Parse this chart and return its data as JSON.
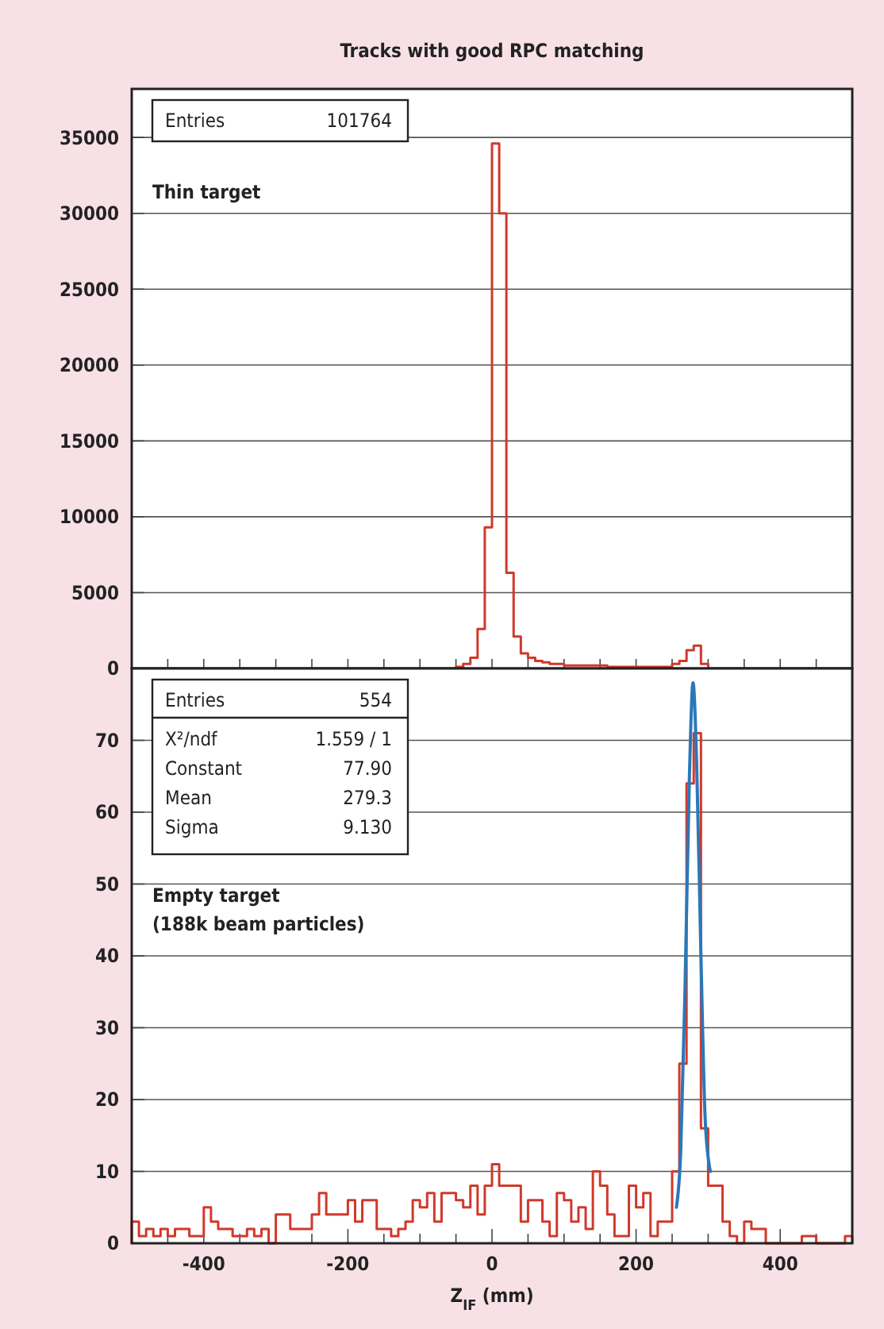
{
  "chart_data": [
    {
      "type": "histogram",
      "title": "Tracks with good RPC matching",
      "subtitle": "Thin target",
      "annotations": [
        "Entries",
        "101764"
      ],
      "bins": [
        -500,
        -490,
        -480,
        -470,
        -460,
        -450,
        -440,
        -430,
        -420,
        -410,
        -400,
        -390,
        -380,
        -370,
        -360,
        -350,
        -340,
        -330,
        -320,
        -310,
        -300,
        -290,
        -280,
        -270,
        -260,
        -250,
        -240,
        -230,
        -220,
        -210,
        -200,
        -190,
        -180,
        -170,
        -160,
        -150,
        -140,
        -130,
        -120,
        -110,
        -100,
        -90,
        -80,
        -70,
        -60,
        -50,
        -40,
        -30,
        -20,
        -10,
        0,
        10,
        20,
        30,
        40,
        50,
        60,
        70,
        80,
        90,
        100,
        110,
        120,
        130,
        140,
        150,
        160,
        170,
        180,
        190,
        200,
        210,
        220,
        230,
        240,
        250,
        260,
        270,
        280,
        290,
        300,
        310,
        320,
        330,
        340,
        350,
        360,
        370,
        380,
        390,
        400,
        410,
        420,
        430,
        440,
        450,
        460,
        470,
        480,
        490,
        500
      ],
      "series": [
        {
          "color": "#d0392b",
          "values": [
            0,
            0,
            0,
            0,
            0,
            0,
            0,
            0,
            0,
            0,
            0,
            0,
            0,
            0,
            0,
            0,
            0,
            0,
            0,
            0,
            0,
            0,
            0,
            0,
            0,
            0,
            0,
            0,
            0,
            0,
            0,
            0,
            0,
            0,
            0,
            0,
            0,
            0,
            0,
            0,
            0,
            0,
            0,
            0,
            0,
            100,
            300,
            700,
            2600,
            9300,
            34600,
            30000,
            6300,
            2100,
            1000,
            700,
            500,
            400,
            300,
            300,
            200,
            200,
            200,
            200,
            200,
            200,
            100,
            100,
            100,
            100,
            100,
            100,
            100,
            100,
            100,
            300,
            500,
            1200,
            1500,
            300,
            0,
            0,
            0,
            0,
            0,
            0,
            0,
            0,
            0,
            0,
            0,
            0,
            0,
            0,
            0,
            0,
            0,
            0,
            0,
            0
          ]
        }
      ],
      "xlim": [
        -500,
        500
      ],
      "ylim": [
        0,
        38200
      ],
      "xticks": [
        {
          "value": -450,
          "label": null
        },
        {
          "value": -400,
          "label": null
        },
        {
          "value": -350,
          "label": null
        },
        {
          "value": -300,
          "label": null
        },
        {
          "value": -250,
          "label": null
        },
        {
          "value": -200,
          "label": null
        },
        {
          "value": -150,
          "label": null
        },
        {
          "value": -100,
          "label": null
        },
        {
          "value": -50,
          "label": null
        },
        {
          "value": 0,
          "label": null
        },
        {
          "value": 50,
          "label": null
        },
        {
          "value": 100,
          "label": null
        },
        {
          "value": 150,
          "label": null
        },
        {
          "value": 200,
          "label": null
        },
        {
          "value": 250,
          "label": null
        },
        {
          "value": 300,
          "label": null
        },
        {
          "value": 350,
          "label": null
        },
        {
          "value": 400,
          "label": null
        },
        {
          "value": 450,
          "label": null
        }
      ],
      "yticks": [
        0,
        5000,
        10000,
        15000,
        20000,
        25000,
        30000,
        35000
      ],
      "grid": "y",
      "tick_labels": "y"
    },
    {
      "type": "histogram",
      "subtitle": "Empty target (188k beam particles)",
      "xlabel": "Z$_{IF}$ (mm)",
      "annotations": [
        "Entries",
        "554",
        "X²/ndf",
        "1.559 / 1",
        "Constant",
        "77.90",
        "Mean",
        "279.3",
        "Sigma",
        "9.130"
      ],
      "bins": [
        -500,
        -490,
        -480,
        -470,
        -460,
        -450,
        -440,
        -430,
        -420,
        -410,
        -400,
        -390,
        -380,
        -370,
        -360,
        -350,
        -340,
        -330,
        -320,
        -310,
        -300,
        -290,
        -280,
        -270,
        -260,
        -250,
        -240,
        -230,
        -220,
        -210,
        -200,
        -190,
        -180,
        -170,
        -160,
        -150,
        -140,
        -130,
        -120,
        -110,
        -100,
        -90,
        -80,
        -70,
        -60,
        -50,
        -40,
        -30,
        -20,
        -10,
        0,
        10,
        20,
        30,
        40,
        50,
        60,
        70,
        80,
        90,
        100,
        110,
        120,
        130,
        140,
        150,
        160,
        170,
        180,
        190,
        200,
        210,
        220,
        230,
        240,
        250,
        260,
        270,
        280,
        290,
        300,
        310,
        320,
        330,
        340,
        350,
        360,
        370,
        380,
        390,
        400,
        410,
        420,
        430,
        440,
        450,
        460,
        470,
        480,
        490,
        500
      ],
      "series": [
        {
          "color": "#d0392b",
          "values": [
            3,
            1,
            2,
            1,
            2,
            1,
            2,
            2,
            1,
            1,
            5,
            3,
            2,
            2,
            1,
            1,
            2,
            1,
            2,
            0,
            4,
            4,
            2,
            2,
            2,
            4,
            7,
            4,
            4,
            4,
            6,
            3,
            6,
            6,
            2,
            2,
            1,
            2,
            3,
            6,
            5,
            7,
            3,
            7,
            7,
            6,
            5,
            8,
            4,
            8,
            11,
            8,
            8,
            8,
            3,
            6,
            6,
            3,
            1,
            7,
            6,
            3,
            5,
            2,
            10,
            8,
            4,
            1,
            1,
            8,
            5,
            7,
            1,
            3,
            3,
            10,
            25,
            64,
            71,
            16,
            8,
            8,
            3,
            1,
            0,
            3,
            2,
            2,
            0,
            0,
            0,
            0,
            0,
            1,
            1,
            0,
            0,
            0,
            0,
            1
          ]
        },
        {
          "type": "line",
          "color": "#2a78b8",
          "x": [
            256,
            262,
            268,
            274,
            279,
            284,
            290,
            296,
            303
          ],
          "values": [
            5,
            13,
            36,
            65,
            78,
            67,
            40,
            17,
            10
          ]
        }
      ],
      "xlim": [
        -500,
        500
      ],
      "ylim": [
        0,
        80
      ],
      "xticks": [
        {
          "value": -450,
          "label": null
        },
        {
          "value": -400,
          "label": "-400"
        },
        {
          "value": -350,
          "label": null
        },
        {
          "value": -300,
          "label": null
        },
        {
          "value": -250,
          "label": null
        },
        {
          "value": -200,
          "label": "-200"
        },
        {
          "value": -150,
          "label": null
        },
        {
          "value": -100,
          "label": null
        },
        {
          "value": -50,
          "label": null
        },
        {
          "value": 0,
          "label": "0"
        },
        {
          "value": 50,
          "label": null
        },
        {
          "value": 100,
          "label": null
        },
        {
          "value": 150,
          "label": null
        },
        {
          "value": 200,
          "label": "200"
        },
        {
          "value": 250,
          "label": null
        },
        {
          "value": 300,
          "label": null
        },
        {
          "value": 350,
          "label": null
        },
        {
          "value": 400,
          "label": "400"
        },
        {
          "value": 450,
          "label": null
        }
      ],
      "yticks": [
        0,
        10,
        20,
        30,
        40,
        50,
        60,
        70
      ],
      "grid": "y"
    }
  ]
}
